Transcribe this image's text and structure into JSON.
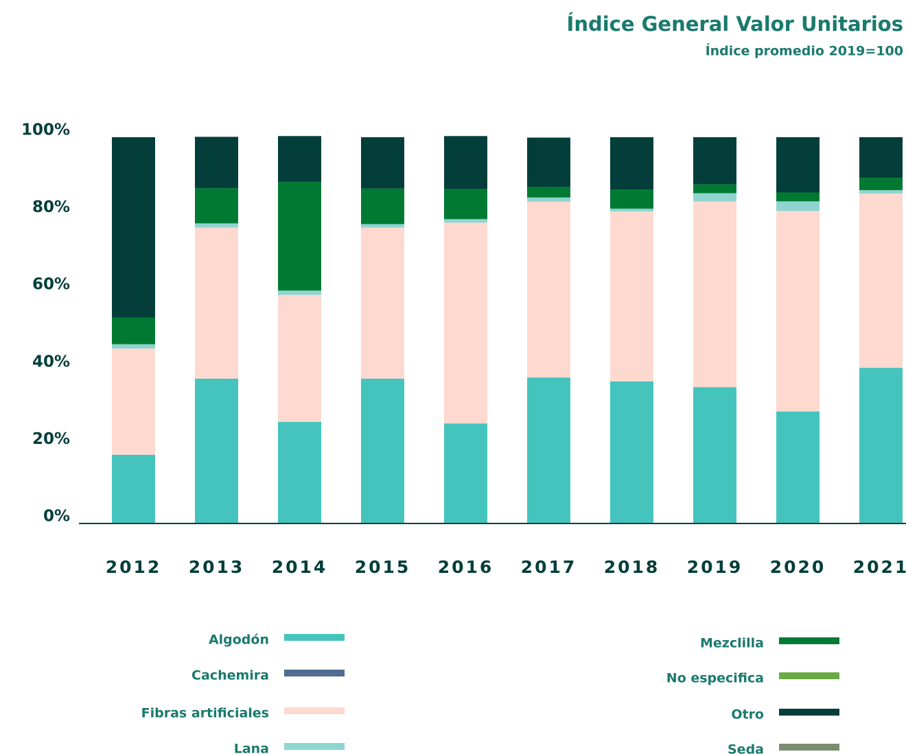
{
  "chart_data": {
    "type": "stacked_bar",
    "title": "Índice General Valor Unitarios",
    "subtitle": "Índice promedio 2019=100",
    "categories": [
      "2012",
      "2013",
      "2014",
      "2015",
      "2016",
      "2017",
      "2018",
      "2019",
      "2020",
      "2021"
    ],
    "series": [
      {
        "name": "Algodón",
        "color": "#45c4be",
        "values": [
          17.8,
          37.5,
          26.3,
          37.5,
          25.9,
          37.8,
          36.8,
          35.3,
          29.0,
          40.3
        ]
      },
      {
        "name": "Cachemira",
        "color": "#4f6d94",
        "values": [
          0,
          0,
          0,
          0,
          0,
          0,
          0,
          0,
          0,
          0
        ]
      },
      {
        "name": "Fibras artificiales",
        "color": "#fdd9d0",
        "values": [
          27.5,
          39.1,
          32.9,
          39.1,
          52.0,
          45.5,
          44.0,
          48.1,
          51.9,
          45.1
        ]
      },
      {
        "name": "Lana",
        "color": "#8fd4d1",
        "values": [
          1.1,
          1.1,
          1.1,
          0.9,
          0.9,
          1.1,
          0.7,
          2.1,
          2.5,
          0.9
        ]
      },
      {
        "name": "Mezclilla",
        "color": "#007a33",
        "values": [
          6.9,
          9.1,
          28.1,
          9.2,
          7.8,
          2.7,
          5.0,
          2.3,
          2.3,
          3.2
        ]
      },
      {
        "name": "No especifica",
        "color": "#6aab45",
        "values": [
          0,
          0,
          0,
          0,
          0,
          0,
          0,
          0,
          0,
          0
        ]
      },
      {
        "name": "Otro",
        "color": "#033e3a",
        "values": [
          46.7,
          13.3,
          11.9,
          13.3,
          13.7,
          12.8,
          13.5,
          12.2,
          14.3,
          10.5
        ]
      },
      {
        "name": "Seda",
        "color": "#7a8c6e",
        "values": [
          0,
          0,
          0,
          0,
          0,
          0,
          0,
          0,
          0,
          0
        ]
      }
    ],
    "ylim": [
      0,
      100
    ],
    "yticks": [
      {
        "value": 0,
        "label": "0%"
      },
      {
        "value": 20,
        "label": "20%"
      },
      {
        "value": 40,
        "label": "40%"
      },
      {
        "value": 60,
        "label": "60%"
      },
      {
        "value": 80,
        "label": "80%"
      },
      {
        "value": 100,
        "label": "100%"
      }
    ]
  }
}
